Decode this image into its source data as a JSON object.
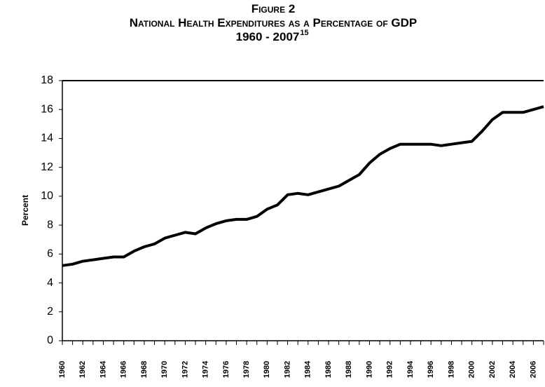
{
  "chart_data": {
    "type": "line",
    "title": [
      "Figure 2",
      "National Health Expenditures as a Percentage of GDP",
      "1960 - 2007"
    ],
    "title_superscript": "15",
    "ylabel": "Percent",
    "categories": [
      "1960",
      null,
      "1962",
      null,
      "1964",
      null,
      "1966",
      null,
      "1968",
      null,
      "1970",
      null,
      "1972",
      null,
      "1974",
      null,
      "1976",
      null,
      "1978",
      null,
      "1980",
      null,
      "1982",
      null,
      "1984",
      null,
      "1986",
      null,
      "1988",
      null,
      "1990",
      null,
      "1992",
      null,
      "1994",
      null,
      "1996",
      null,
      "1998",
      null,
      "2000",
      null,
      "2002",
      null,
      "2004",
      null,
      "2006",
      null
    ],
    "values": [
      5.2,
      5.3,
      5.5,
      5.6,
      5.7,
      5.8,
      5.8,
      6.2,
      6.5,
      6.7,
      7.1,
      7.3,
      7.5,
      7.4,
      7.8,
      8.1,
      8.3,
      8.4,
      8.4,
      8.6,
      9.1,
      9.4,
      10.1,
      10.2,
      10.1,
      10.3,
      10.5,
      10.7,
      11.1,
      11.5,
      12.3,
      12.9,
      13.3,
      13.6,
      13.6,
      13.6,
      13.6,
      13.5,
      13.6,
      13.7,
      13.8,
      14.5,
      15.3,
      15.8,
      15.8,
      15.8,
      16.0,
      16.2
    ],
    "color": "#000000",
    "ylim": [
      0,
      18
    ],
    "yticks": [
      0,
      2,
      4,
      6,
      8,
      10,
      12,
      14,
      16,
      18
    ],
    "grid": false
  }
}
